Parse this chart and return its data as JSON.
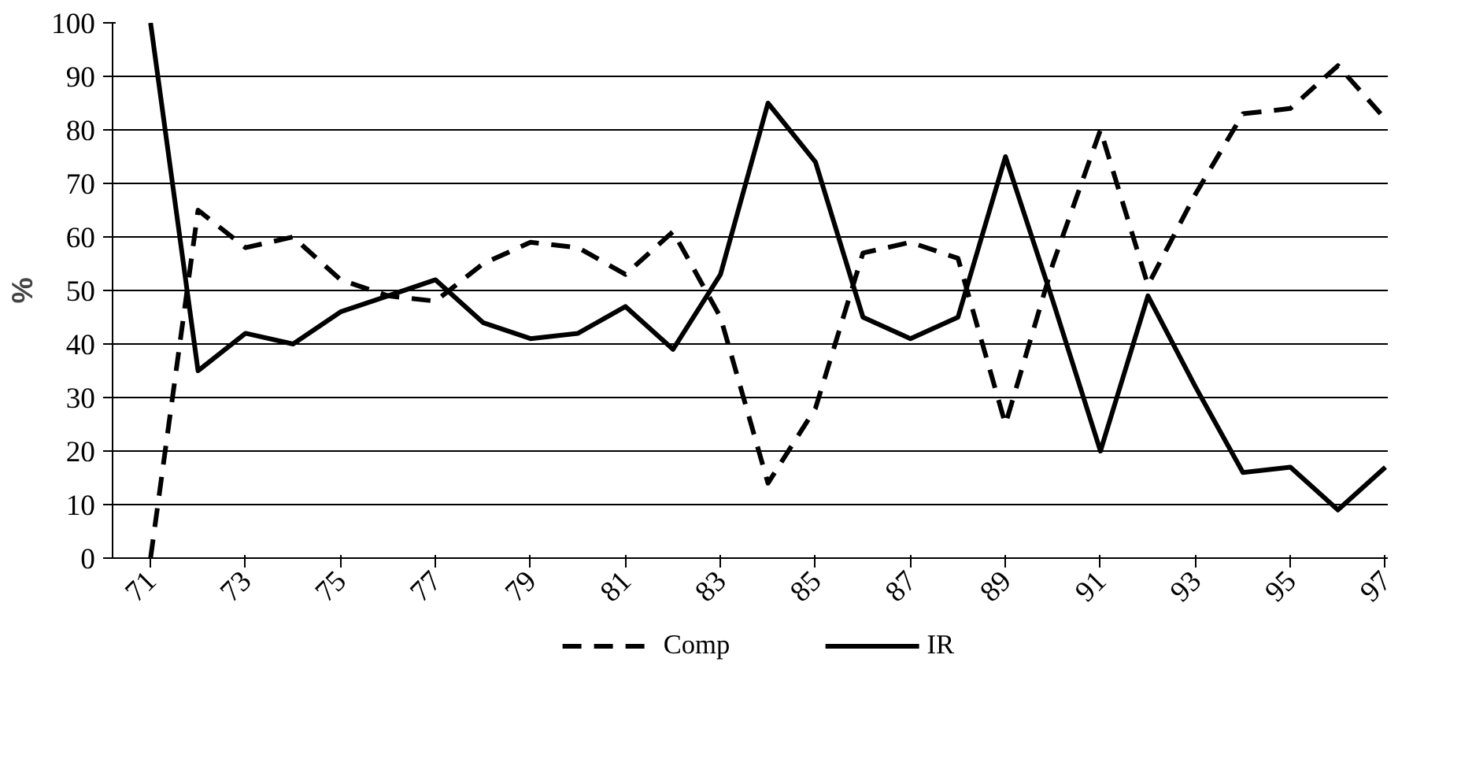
{
  "chart_data": {
    "type": "line",
    "ylabel": "%",
    "categories": [
      "71",
      null,
      "73",
      null,
      "75",
      null,
      "77",
      null,
      "79",
      null,
      "81",
      null,
      "83",
      null,
      "85",
      null,
      "87",
      null,
      "89",
      null,
      "91",
      null,
      "93",
      null,
      "95",
      null,
      "97"
    ],
    "series": [
      {
        "name": "Comp",
        "color": "#000000",
        "line_style": "dashed",
        "values": [
          0,
          65,
          58,
          60,
          52,
          49,
          48,
          55,
          59,
          58,
          53,
          61,
          45,
          14,
          28,
          57,
          59,
          56,
          25,
          55,
          80,
          51,
          68,
          83,
          84,
          92,
          82
        ]
      },
      {
        "name": "IR",
        "color": "#000000",
        "line_style": "solid",
        "values": [
          100,
          35,
          42,
          40,
          46,
          49,
          52,
          44,
          41,
          42,
          47,
          39,
          53,
          85,
          74,
          45,
          41,
          45,
          75,
          48,
          20,
          49,
          32,
          16,
          17,
          9,
          17
        ]
      }
    ],
    "ylim": [
      0,
      100
    ],
    "yticks": [
      0,
      10,
      20,
      30,
      40,
      50,
      60,
      70,
      80,
      90,
      100
    ],
    "grid": "y",
    "legend": "bottom",
    "marker": "none"
  }
}
